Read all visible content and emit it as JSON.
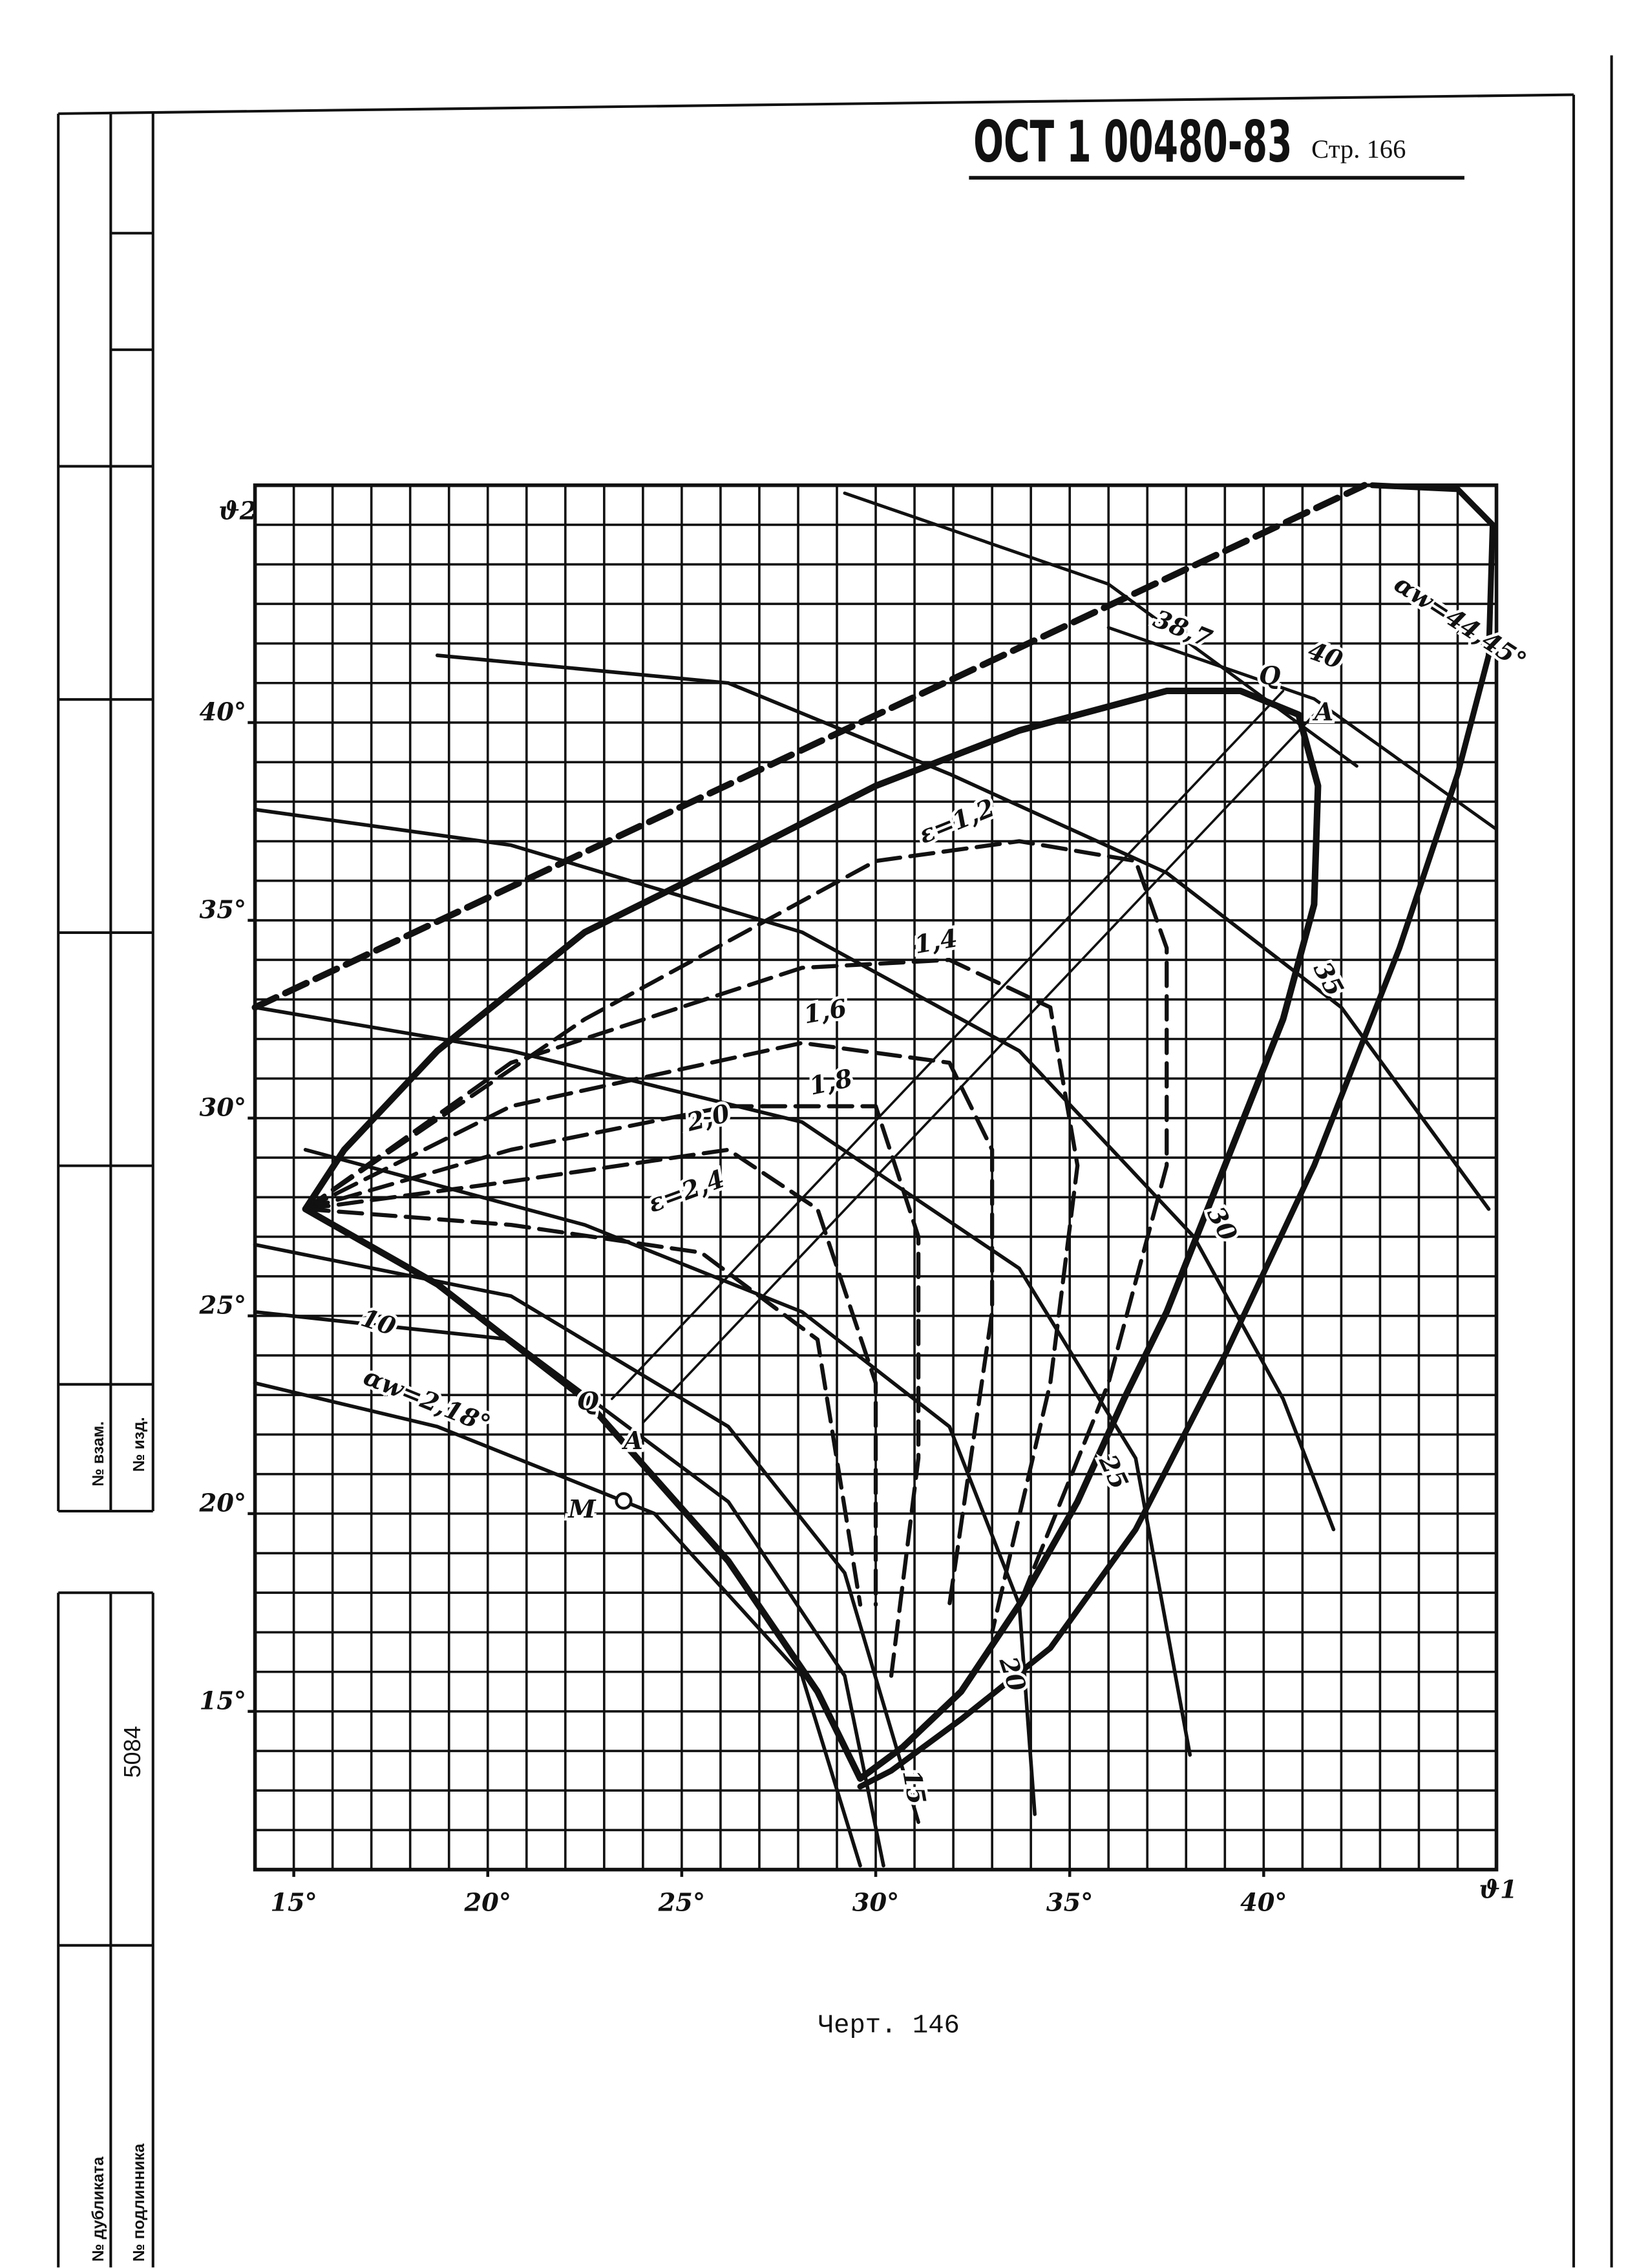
{
  "header": {
    "standard": "ОСТ 1 00480-83",
    "page": "Стр. 166"
  },
  "caption": "Черт. 146",
  "stamp": {
    "replaced": "№ взам.",
    "issued": "№ изд.",
    "number": "5084",
    "duplicate": "№ дубликата",
    "original": "№ подлинника"
  },
  "chart_data": {
    "type": "line",
    "x_label": "ϑ1",
    "y_label": "ϑ2",
    "xlim": [
      14,
      46
    ],
    "ylim": [
      11,
      46
    ],
    "xticks": [
      {
        "value": 15,
        "label": "15°"
      },
      {
        "value": 20,
        "label": "20°"
      },
      {
        "value": 25,
        "label": "25°"
      },
      {
        "value": 30,
        "label": "30°"
      },
      {
        "value": 35,
        "label": "35°"
      },
      {
        "value": 40,
        "label": "40°"
      }
    ],
    "yticks": [
      {
        "value": 15,
        "label": "15°"
      },
      {
        "value": 20,
        "label": "20°"
      },
      {
        "value": 25,
        "label": "25°"
      },
      {
        "value": 30,
        "label": "30°"
      },
      {
        "value": 35,
        "label": "35°"
      },
      {
        "value": 40,
        "label": "40°"
      }
    ],
    "grid": true,
    "x_minor_ticks": [
      14,
      15,
      16,
      17,
      18,
      19,
      20,
      21,
      22,
      23,
      24,
      25,
      26,
      27,
      28,
      29,
      30,
      31,
      32,
      33,
      34,
      35,
      36,
      37,
      38,
      39,
      40,
      41,
      42,
      43,
      44,
      45,
      46
    ],
    "y_minor_ticks": [
      11,
      12,
      13,
      14,
      15,
      16,
      17,
      18,
      19,
      20,
      21,
      22,
      23,
      24,
      25,
      26,
      27,
      28,
      29,
      30,
      31,
      32,
      33,
      34,
      35,
      36,
      37,
      38,
      39,
      40,
      41,
      42,
      43,
      44,
      45,
      46
    ],
    "series": [
      {
        "color": "#111",
        "width": 4.5,
        "style": "dashed",
        "x": [
          14,
          42.6
        ],
        "values": [
          32.8,
          46
        ]
      },
      {
        "color": "#111",
        "width": 4.5,
        "style": "solid",
        "x": [
          15.3,
          16.3,
          18.7,
          22.5,
          26.2,
          30.0,
          33.7,
          37.5,
          39.4,
          40.9,
          41.4,
          41.3,
          40.5,
          39.0,
          37.5,
          36.4,
          35.2,
          33.7,
          32.2,
          30.7,
          29.6,
          28.5,
          26.2,
          22.5,
          18.7,
          15.3
        ],
        "values": [
          27.7,
          29.2,
          31.7,
          34.7,
          36.5,
          38.4,
          39.8,
          40.8,
          40.8,
          40.2,
          38.4,
          35.4,
          32.5,
          28.8,
          25.1,
          22.9,
          20.3,
          17.7,
          15.5,
          14.1,
          13.3,
          15.5,
          18.8,
          22.9,
          25.8,
          27.7
        ]
      },
      {
        "color": "#111",
        "width": 4,
        "style": "solid",
        "x": [
          42.8,
          45.0,
          45.9,
          45.8,
          45.0,
          43.5,
          41.3,
          39.0,
          36.7,
          34.5,
          32.2,
          30.4,
          29.6
        ],
        "values": [
          46,
          45.9,
          45.0,
          41.7,
          38.7,
          34.3,
          28.8,
          24.0,
          19.6,
          16.6,
          14.8,
          13.5,
          13.1
        ]
      },
      {
        "color": "#111",
        "width": 2.2,
        "style": "solid",
        "x": [
          29.2,
          36.0,
          42.4
        ],
        "values": [
          45.8,
          43.5,
          38.9
        ]
      },
      {
        "color": "#111",
        "width": 2.2,
        "style": "solid",
        "x": [
          36.0,
          41.3,
          46.0
        ],
        "values": [
          42.4,
          40.6,
          37.3
        ]
      },
      {
        "color": "#111",
        "width": 2.5,
        "style": "solid",
        "x": [
          18.7,
          26.2,
          31.9,
          37.5,
          42.0,
          45.8
        ],
        "values": [
          41.7,
          41.0,
          38.7,
          36.2,
          32.8,
          27.7
        ]
      },
      {
        "color": "#111",
        "width": 2.5,
        "style": "solid",
        "x": [
          14,
          20.6,
          28.1,
          33.7,
          38.2,
          40.5,
          41.8
        ],
        "values": [
          37.8,
          36.9,
          34.7,
          31.7,
          27.0,
          22.9,
          19.6
        ]
      },
      {
        "color": "#111",
        "width": 2.5,
        "style": "solid",
        "x": [
          14,
          20.6,
          28.1,
          33.7,
          36.7,
          38.1
        ],
        "values": [
          32.8,
          31.7,
          29.9,
          26.2,
          21.4,
          13.9
        ]
      },
      {
        "color": "#111",
        "width": 2.5,
        "style": "solid",
        "x": [
          15.3,
          22.5,
          28.1,
          31.9,
          33.7,
          34.1
        ],
        "values": [
          29.2,
          27.3,
          25.1,
          22.2,
          17.7,
          12.4
        ]
      },
      {
        "color": "#111",
        "width": 2.5,
        "style": "solid",
        "x": [
          14,
          20.6,
          26.2,
          29.2,
          31.1
        ],
        "values": [
          26.8,
          25.5,
          22.2,
          18.5,
          12.2
        ]
      },
      {
        "color": "#111",
        "width": 2.5,
        "style": "solid",
        "x": [
          14,
          20.6,
          26.2,
          29.2,
          30.2
        ],
        "values": [
          25.1,
          24.4,
          20.3,
          15.9,
          11.1
        ]
      },
      {
        "color": "#111",
        "width": 2.5,
        "style": "solid",
        "x": [
          14,
          18.7,
          24.3,
          28.1,
          29.6
        ],
        "values": [
          23.3,
          22.2,
          20.0,
          15.9,
          11.1
        ]
      },
      {
        "color": "#111",
        "width": 2.8,
        "style": "dashed",
        "x": [
          15.3,
          22.5,
          30.0,
          33.7,
          36.7,
          37.5,
          37.5,
          36.0,
          33.7
        ],
        "values": [
          27.7,
          32.5,
          36.5,
          37.0,
          36.5,
          34.3,
          28.8,
          23.3,
          17.7
        ]
      },
      {
        "color": "#111",
        "width": 2.8,
        "style": "dashed",
        "x": [
          15.3,
          20.6,
          28.1,
          31.9,
          34.5,
          35.2,
          34.5,
          33.0
        ],
        "values": [
          27.7,
          31.4,
          33.8,
          34.0,
          32.8,
          28.8,
          23.3,
          17.0
        ]
      },
      {
        "color": "#111",
        "width": 2.8,
        "style": "dashed",
        "x": [
          15.3,
          20.6,
          28.1,
          31.9,
          33.0,
          33.0,
          31.9
        ],
        "values": [
          27.7,
          30.3,
          31.9,
          31.4,
          29.2,
          25.1,
          17.7
        ]
      },
      {
        "color": "#111",
        "width": 2.8,
        "style": "dashed",
        "x": [
          15.3,
          20.6,
          26.2,
          30.0,
          31.1,
          31.1,
          30.4
        ],
        "values": [
          27.7,
          29.2,
          30.3,
          30.3,
          27.0,
          21.4,
          15.9
        ]
      },
      {
        "color": "#111",
        "width": 2.8,
        "style": "dashed",
        "x": [
          15.3,
          20.6,
          26.2,
          28.5,
          30.0,
          30.0
        ],
        "values": [
          27.7,
          28.4,
          29.2,
          27.7,
          23.3,
          17.7
        ]
      },
      {
        "color": "#111",
        "width": 2.8,
        "style": "dashed",
        "x": [
          15.3,
          20.6,
          25.5,
          28.5,
          29.6
        ],
        "values": [
          27.7,
          27.3,
          26.6,
          24.4,
          17.7
        ]
      },
      {
        "color": "#111",
        "width": 1.6,
        "style": "solid",
        "x": [
          23.2,
          40.5
        ],
        "values": [
          22.9,
          40.8
        ]
      },
      {
        "color": "#111",
        "width": 1.6,
        "style": "solid",
        "x": [
          24.0,
          41.3
        ],
        "values": [
          22.3,
          40.2
        ]
      }
    ],
    "annotations": [
      "αw=44,45°",
      "38,7",
      "40",
      "Q",
      "A",
      "ε=1,2",
      "1,4",
      "1,6",
      "1,8",
      "2,0",
      "ε=2,4",
      "35",
      "30",
      "25",
      "20",
      "15",
      "10",
      "αw=2,18°",
      "Q",
      "A",
      "M"
    ]
  }
}
